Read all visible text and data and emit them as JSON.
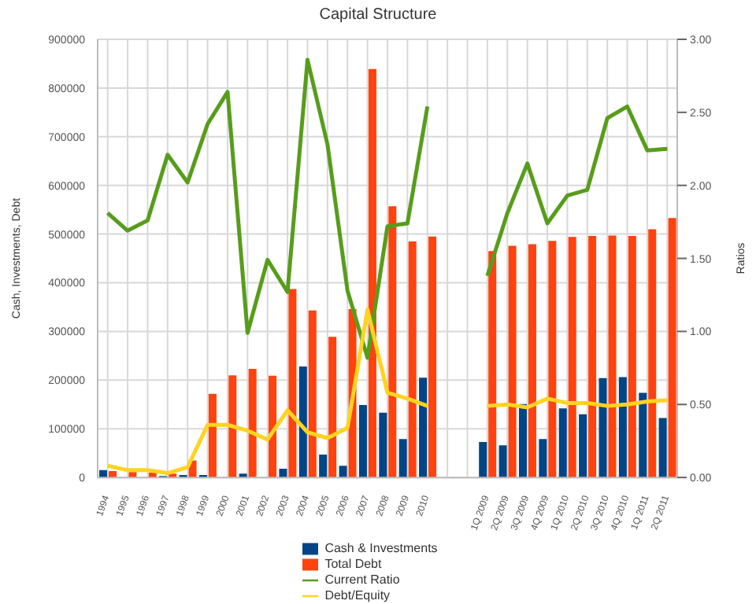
{
  "chart_data": {
    "type": "bar",
    "title": "Capital Structure",
    "ylabel": "Cash, Investments, Debt",
    "y2label": "Ratios",
    "categories": [
      "1994",
      "1995",
      "1996",
      "1997",
      "1998",
      "1999",
      "2000",
      "2001",
      "2002",
      "2003",
      "2004",
      "2005",
      "2006",
      "2007",
      "2008",
      "2009",
      "2010",
      null,
      null,
      "1Q 2009",
      "2Q 2009",
      "3Q 2009",
      "4Q 2009",
      "1Q 2010",
      "2Q 2010",
      "3Q 2010",
      "4Q 2010",
      "1Q 2011",
      "2Q 2011"
    ],
    "series": [
      {
        "name": "Cash & Investments",
        "color": "#004586",
        "values": [
          15000,
          null,
          null,
          3000,
          5000,
          5000,
          null,
          8000,
          null,
          18000,
          228000,
          47000,
          24000,
          149000,
          133000,
          79000,
          205000,
          null,
          null,
          73000,
          66000,
          151000,
          79000,
          142000,
          130000,
          204000,
          206000,
          174000,
          122000
        ]
      },
      {
        "name": "Total Debt",
        "color": "#ff420e",
        "values": [
          13000,
          11000,
          10000,
          8000,
          35000,
          172000,
          210000,
          223000,
          209000,
          387000,
          343000,
          289000,
          346000,
          839000,
          557000,
          485000,
          495000,
          null,
          null,
          465000,
          476000,
          479000,
          486000,
          494000,
          496000,
          497000,
          496000,
          510000,
          533000
        ]
      },
      {
        "name": "Current Ratio",
        "type": "line",
        "axis": "y2",
        "color": "#579d1c",
        "values": [
          1.81,
          1.69,
          1.76,
          2.21,
          2.02,
          2.42,
          2.64,
          0.99,
          1.49,
          1.27,
          2.86,
          2.28,
          1.28,
          0.82,
          1.72,
          1.74,
          2.54,
          null,
          null,
          1.38,
          1.81,
          2.15,
          1.74,
          1.93,
          1.97,
          2.46,
          2.54,
          2.24,
          2.25
        ]
      },
      {
        "name": "Debt/Equity",
        "type": "line",
        "axis": "y2",
        "color": "#ffd320",
        "values": [
          0.08,
          0.05,
          0.05,
          0.03,
          0.07,
          0.36,
          0.36,
          0.32,
          0.26,
          0.46,
          0.31,
          0.27,
          0.34,
          1.15,
          0.58,
          0.54,
          0.49,
          null,
          null,
          0.49,
          0.5,
          0.48,
          0.54,
          0.51,
          0.51,
          0.49,
          0.5,
          0.52,
          0.53
        ]
      }
    ],
    "ylim": [
      0,
      900000
    ],
    "yticks": [
      0,
      100000,
      200000,
      300000,
      400000,
      500000,
      600000,
      700000,
      800000,
      900000
    ],
    "y2lim": [
      0,
      3
    ],
    "y2ticks": [
      {
        "value": 0,
        "label": "0.00"
      },
      {
        "value": 0.5,
        "label": "0.50"
      },
      {
        "value": 1,
        "label": "1.00"
      },
      {
        "value": 1.5,
        "label": "1.50"
      },
      {
        "value": 2,
        "label": "2.00"
      },
      {
        "value": 2.5,
        "label": "2.50"
      },
      {
        "value": 3,
        "label": "3.00"
      }
    ],
    "grid": true,
    "legend": "bottom",
    "marker": "none"
  }
}
